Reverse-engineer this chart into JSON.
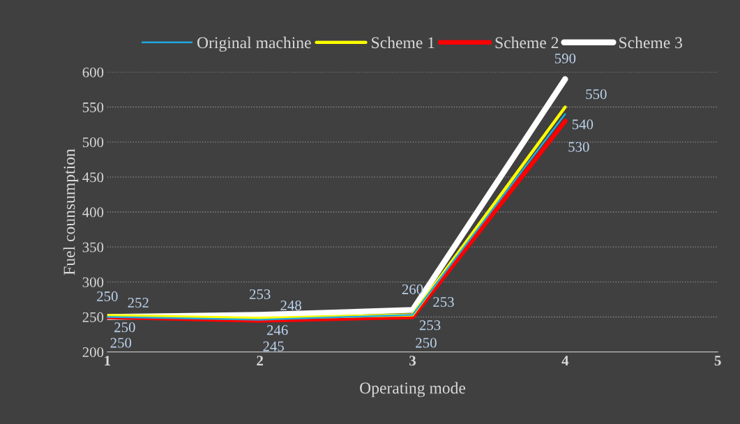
{
  "chart_data": {
    "type": "line",
    "xlabel": "Operating mode",
    "ylabel": "Fuel counsumption",
    "x": [
      1,
      2,
      3,
      4
    ],
    "series": [
      {
        "name": "Original machine",
        "color": "#1fa8e0",
        "values": [
          250,
          246,
          253,
          540
        ]
      },
      {
        "name": "Scheme 1",
        "color": "#ffff00",
        "values": [
          252,
          248,
          253,
          550
        ]
      },
      {
        "name": "Scheme 2",
        "color": "#ff0000",
        "values": [
          250,
          245,
          250,
          530
        ]
      },
      {
        "name": "Scheme 3",
        "color": "#ffffff",
        "values": [
          250,
          253,
          260,
          590
        ]
      }
    ],
    "xlim": [
      1,
      5
    ],
    "xticks": [
      1,
      2,
      3,
      4,
      5
    ],
    "ylim": [
      200,
      600
    ],
    "yticks": [
      200,
      250,
      300,
      350,
      400,
      450,
      500,
      550,
      600
    ],
    "grid": "y",
    "legend": "top",
    "data_labels": true,
    "marker": "none",
    "line_style": "solid"
  }
}
